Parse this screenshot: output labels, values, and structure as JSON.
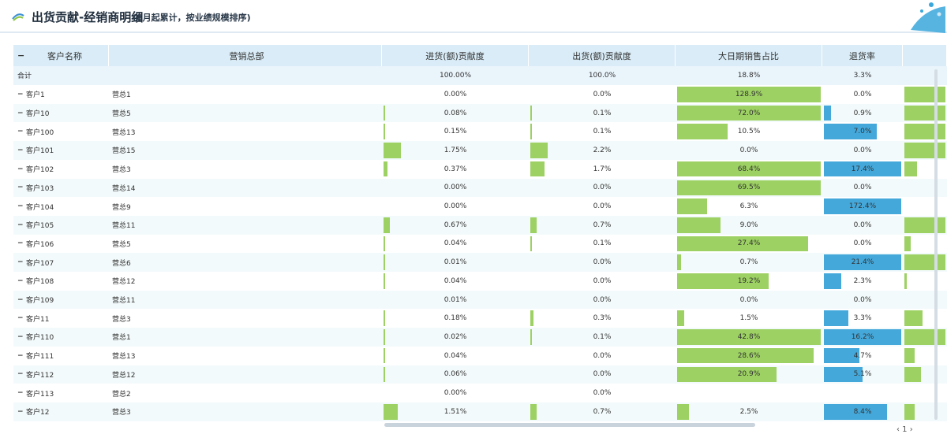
{
  "header": {
    "title": "出货贡献-经销商明细",
    "subtitle": "(8月起累计，按业绩规模排序)"
  },
  "table": {
    "columns": [
      "客户名称",
      "营销总部",
      "进货(额)贡献度",
      "出货(额)贡献度",
      "大日期销售占比",
      "退货率"
    ],
    "total": {
      "name": "合计",
      "jin": "100.00%",
      "chu": "100.0%",
      "ratio": "18.8%",
      "ret": "3.3%"
    },
    "rows": [
      {
        "name": "客户1",
        "dept": "营总1",
        "jin": "0.00%",
        "chu": "0.0%",
        "ratio": "128.9%",
        "ret": "0.0%",
        "jin_frac": 0.0,
        "chu_frac": 0.0,
        "ratio_frac": 1.0,
        "ret_frac": 0.0,
        "extra_frac": 1.0
      },
      {
        "name": "客户10",
        "dept": "营总5",
        "jin": "0.08%",
        "chu": "0.1%",
        "ratio": "72.0%",
        "ret": "0.9%",
        "jin_frac": 0.005,
        "chu_frac": 0.005,
        "ratio_frac": 1.0,
        "ret_frac": 0.09,
        "extra_frac": 1.0
      },
      {
        "name": "客户100",
        "dept": "营总13",
        "jin": "0.15%",
        "chu": "0.1%",
        "ratio": "10.5%",
        "ret": "7.0%",
        "jin_frac": 0.006,
        "chu_frac": 0.006,
        "ratio_frac": 0.35,
        "ret_frac": 0.68,
        "extra_frac": 1.0
      },
      {
        "name": "客户101",
        "dept": "营总15",
        "jin": "1.75%",
        "chu": "2.2%",
        "ratio": "0.0%",
        "ret": "0.0%",
        "jin_frac": 0.12,
        "chu_frac": 0.12,
        "ratio_frac": 0.0,
        "ret_frac": 0.0,
        "extra_frac": 1.0
      },
      {
        "name": "客户102",
        "dept": "营总3",
        "jin": "0.37%",
        "chu": "1.7%",
        "ratio": "68.4%",
        "ret": "17.4%",
        "jin_frac": 0.025,
        "chu_frac": 0.1,
        "ratio_frac": 1.0,
        "ret_frac": 1.0,
        "extra_frac": 0.3
      },
      {
        "name": "客户103",
        "dept": "营总14",
        "jin": "0.00%",
        "chu": "0.0%",
        "ratio": "69.5%",
        "ret": "0.0%",
        "jin_frac": 0.0,
        "chu_frac": 0.0,
        "ratio_frac": 1.0,
        "ret_frac": 0.0,
        "extra_frac": 0.0
      },
      {
        "name": "客户104",
        "dept": "营总9",
        "jin": "0.00%",
        "chu": "0.0%",
        "ratio": "6.3%",
        "ret": "172.4%",
        "jin_frac": 0.0,
        "chu_frac": 0.0,
        "ratio_frac": 0.21,
        "ret_frac": 1.0,
        "extra_frac": 0.0
      },
      {
        "name": "客户105",
        "dept": "营总11",
        "jin": "0.67%",
        "chu": "0.7%",
        "ratio": "9.0%",
        "ret": "0.0%",
        "jin_frac": 0.045,
        "chu_frac": 0.045,
        "ratio_frac": 0.3,
        "ret_frac": 0.0,
        "extra_frac": 1.0
      },
      {
        "name": "客户106",
        "dept": "营总5",
        "jin": "0.04%",
        "chu": "0.1%",
        "ratio": "27.4%",
        "ret": "0.0%",
        "jin_frac": 0.005,
        "chu_frac": 0.005,
        "ratio_frac": 0.91,
        "ret_frac": 0.0,
        "extra_frac": 0.15
      },
      {
        "name": "客户107",
        "dept": "营总6",
        "jin": "0.01%",
        "chu": "0.0%",
        "ratio": "0.7%",
        "ret": "21.4%",
        "jin_frac": 0.005,
        "chu_frac": 0.0,
        "ratio_frac": 0.025,
        "ret_frac": 1.0,
        "extra_frac": 1.0
      },
      {
        "name": "客户108",
        "dept": "营总12",
        "jin": "0.04%",
        "chu": "0.0%",
        "ratio": "19.2%",
        "ret": "2.3%",
        "jin_frac": 0.005,
        "chu_frac": 0.0,
        "ratio_frac": 0.64,
        "ret_frac": 0.22,
        "extra_frac": 0.05
      },
      {
        "name": "客户109",
        "dept": "营总11",
        "jin": "0.01%",
        "chu": "0.0%",
        "ratio": "0.0%",
        "ret": "0.0%",
        "jin_frac": 0.0,
        "chu_frac": 0.0,
        "ratio_frac": 0.0,
        "ret_frac": 0.0,
        "extra_frac": 0.0
      },
      {
        "name": "客户11",
        "dept": "营总3",
        "jin": "0.18%",
        "chu": "0.3%",
        "ratio": "1.5%",
        "ret": "3.3%",
        "jin_frac": 0.012,
        "chu_frac": 0.02,
        "ratio_frac": 0.05,
        "ret_frac": 0.32,
        "extra_frac": 0.45
      },
      {
        "name": "客户110",
        "dept": "营总1",
        "jin": "0.02%",
        "chu": "0.1%",
        "ratio": "42.8%",
        "ret": "16.2%",
        "jin_frac": 0.005,
        "chu_frac": 0.005,
        "ratio_frac": 1.0,
        "ret_frac": 1.0,
        "extra_frac": 1.0
      },
      {
        "name": "客户111",
        "dept": "营总13",
        "jin": "0.04%",
        "chu": "0.0%",
        "ratio": "28.6%",
        "ret": "4.7%",
        "jin_frac": 0.005,
        "chu_frac": 0.0,
        "ratio_frac": 0.95,
        "ret_frac": 0.46,
        "extra_frac": 0.25
      },
      {
        "name": "客户112",
        "dept": "营总12",
        "jin": "0.06%",
        "chu": "0.0%",
        "ratio": "20.9%",
        "ret": "5.1%",
        "jin_frac": 0.005,
        "chu_frac": 0.0,
        "ratio_frac": 0.69,
        "ret_frac": 0.5,
        "extra_frac": 0.4
      },
      {
        "name": "客户113",
        "dept": "营总2",
        "jin": "0.00%",
        "chu": "0.0%",
        "ratio": "",
        "ret": "",
        "jin_frac": 0.0,
        "chu_frac": 0.0,
        "ratio_frac": 0.0,
        "ret_frac": 0.0,
        "extra_frac": 0.0
      },
      {
        "name": "客户12",
        "dept": "营总3",
        "jin": "1.51%",
        "chu": "0.7%",
        "ratio": "2.5%",
        "ret": "8.4%",
        "jin_frac": 0.1,
        "chu_frac": 0.045,
        "ratio_frac": 0.08,
        "ret_frac": 0.82,
        "extra_frac": 0.25
      }
    ]
  },
  "colors": {
    "green": "#9dd163",
    "blue": "#44a8db",
    "header_bg": "#d9ecf7"
  },
  "icons": {
    "collapse": "minus-icon",
    "logo": "swirl-logo-icon"
  }
}
